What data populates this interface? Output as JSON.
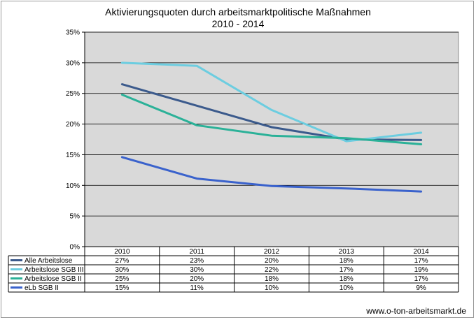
{
  "chart_data": {
    "type": "line",
    "title": "Aktivierungsquoten durch arbeitsmarktpolitische Maßnahmen",
    "subtitle": "2010 - 2014",
    "categories": [
      "2010",
      "2011",
      "2012",
      "2013",
      "2014"
    ],
    "ylim": [
      0,
      35
    ],
    "yticks": [
      "0%",
      "5%",
      "10%",
      "15%",
      "20%",
      "25%",
      "30%",
      "35%"
    ],
    "ytick_values": [
      0,
      5,
      10,
      15,
      20,
      25,
      30,
      35
    ],
    "grid": true,
    "legend": "data-table",
    "series": [
      {
        "name": "Alle Arbeitslose",
        "color": "#3b5a8c",
        "values": [
          26.5,
          23.0,
          19.5,
          17.5,
          17.4
        ],
        "labels": [
          "27%",
          "23%",
          "20%",
          "18%",
          "17%"
        ]
      },
      {
        "name": "Arbeitslose SGB III",
        "color": "#6ccde0",
        "values": [
          30.0,
          29.5,
          22.3,
          17.2,
          18.6
        ],
        "labels": [
          "30%",
          "30%",
          "22%",
          "17%",
          "19%"
        ]
      },
      {
        "name": "Arbeitslose SGB II",
        "color": "#2bb198",
        "values": [
          24.8,
          19.8,
          18.1,
          17.7,
          16.7
        ],
        "labels": [
          "25%",
          "20%",
          "18%",
          "18%",
          "17%"
        ]
      },
      {
        "name": "eLb SGB II",
        "color": "#3a62cc",
        "values": [
          14.6,
          11.1,
          9.9,
          9.5,
          9.0
        ],
        "labels": [
          "15%",
          "11%",
          "10%",
          "10%",
          "9%"
        ]
      }
    ],
    "plot_background": "#d9d9d9"
  },
  "source": "www.o-ton-arbeitsmarkt.de"
}
